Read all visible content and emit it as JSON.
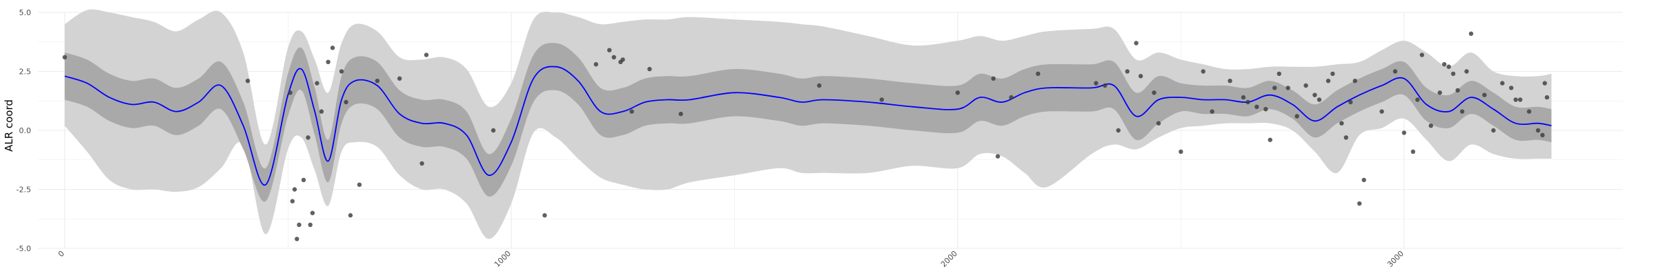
{
  "chart_data": {
    "type": "line",
    "title": "",
    "xlabel": "",
    "ylabel": "ALR coord",
    "xlim": [
      -60,
      3490
    ],
    "ylim": [
      -5.0,
      5.0
    ],
    "x_ticks": [
      0,
      1000,
      2000,
      3000
    ],
    "x_tick_labels": [
      "0",
      "1000",
      "2000",
      "3000"
    ],
    "y_ticks": [
      -5.0,
      -2.5,
      0.0,
      2.5,
      5.0
    ],
    "y_tick_labels": [
      "-5.0",
      "-2.5",
      "0.0",
      "2.5",
      "5.0"
    ],
    "grid": true,
    "legend": "none",
    "colors": {
      "mean_line": "#0000ff",
      "inner_band": "#a9a9a9",
      "outer_band": "#d3d3d3",
      "points": "#3a3a3a",
      "grid": "#ebebeb"
    },
    "series": [
      {
        "kind": "mean",
        "x": [
          0,
          50,
          100,
          150,
          200,
          250,
          300,
          350,
          400,
          450,
          500,
          530,
          560,
          590,
          620,
          650,
          700,
          750,
          800,
          850,
          900,
          950,
          1000,
          1050,
          1100,
          1150,
          1200,
          1250,
          1300,
          1350,
          1400,
          1500,
          1600,
          1650,
          1700,
          1800,
          1900,
          2000,
          2050,
          2100,
          2150,
          2200,
          2300,
          2350,
          2400,
          2450,
          2500,
          2550,
          2600,
          2650,
          2700,
          2750,
          2800,
          2850,
          2900,
          2950,
          3000,
          3050,
          3100,
          3150,
          3200,
          3250,
          3300,
          3330
        ],
        "y": [
          2.3,
          2.0,
          1.4,
          1.1,
          1.2,
          0.8,
          1.2,
          1.9,
          0.2,
          -2.3,
          1.5,
          2.6,
          0.8,
          -1.3,
          1.3,
          2.1,
          1.9,
          0.7,
          0.3,
          0.3,
          -0.2,
          -1.9,
          -0.5,
          2.2,
          2.7,
          2.1,
          0.8,
          0.8,
          1.2,
          1.3,
          1.3,
          1.6,
          1.4,
          1.2,
          1.3,
          1.2,
          1.0,
          0.9,
          1.4,
          1.2,
          1.6,
          1.8,
          1.8,
          1.9,
          0.6,
          1.3,
          1.4,
          1.3,
          1.3,
          1.2,
          1.5,
          1.1,
          0.4,
          1.0,
          1.5,
          1.9,
          2.2,
          1.1,
          0.8,
          1.4,
          0.9,
          0.3,
          0.3,
          0.2
        ]
      },
      {
        "kind": "inner_band",
        "x": [
          0,
          50,
          100,
          150,
          200,
          250,
          300,
          350,
          400,
          450,
          500,
          530,
          560,
          590,
          620,
          650,
          700,
          750,
          800,
          850,
          900,
          950,
          1000,
          1050,
          1100,
          1150,
          1200,
          1250,
          1300,
          1350,
          1400,
          1500,
          1600,
          1650,
          1700,
          1800,
          1900,
          2000,
          2050,
          2100,
          2150,
          2200,
          2300,
          2350,
          2400,
          2450,
          2500,
          2550,
          2600,
          2650,
          2700,
          2750,
          2800,
          2850,
          2900,
          2950,
          3000,
          3050,
          3100,
          3150,
          3200,
          3250,
          3300,
          3330
        ],
        "lower": [
          1.3,
          1.0,
          0.4,
          0.1,
          0.2,
          -0.2,
          0.2,
          0.9,
          -0.8,
          -3.0,
          0.6,
          1.7,
          -0.2,
          -2.2,
          0.3,
          1.1,
          0.9,
          -0.3,
          -0.7,
          -0.7,
          -1.2,
          -2.8,
          -1.5,
          1.2,
          1.7,
          1.1,
          -0.2,
          -0.2,
          0.2,
          0.3,
          0.3,
          0.6,
          0.4,
          0.2,
          0.3,
          0.2,
          0.0,
          -0.1,
          0.4,
          0.2,
          0.6,
          0.8,
          0.8,
          0.9,
          -0.4,
          0.3,
          0.8,
          0.7,
          0.7,
          0.6,
          0.9,
          0.5,
          -0.3,
          0.3,
          0.8,
          1.2,
          1.5,
          0.4,
          0.1,
          0.7,
          0.2,
          -0.4,
          -0.4,
          -0.5
        ],
        "upper": [
          3.3,
          3.0,
          2.4,
          2.1,
          2.2,
          1.8,
          2.2,
          2.9,
          1.2,
          -1.6,
          2.4,
          3.5,
          1.8,
          -0.4,
          2.3,
          3.1,
          2.9,
          1.7,
          1.3,
          1.3,
          0.8,
          -1.0,
          0.5,
          3.2,
          3.7,
          3.1,
          1.8,
          1.8,
          2.2,
          2.3,
          2.3,
          2.6,
          2.4,
          2.2,
          2.3,
          2.2,
          2.0,
          1.9,
          2.4,
          2.2,
          2.6,
          2.8,
          2.8,
          2.9,
          1.6,
          2.3,
          2.0,
          1.9,
          1.9,
          1.8,
          2.1,
          1.7,
          1.1,
          1.7,
          2.2,
          2.6,
          2.9,
          1.8,
          1.5,
          2.1,
          1.6,
          1.0,
          1.0,
          0.9
        ]
      },
      {
        "kind": "outer_band",
        "x": [
          0,
          50,
          100,
          150,
          200,
          250,
          300,
          350,
          400,
          450,
          500,
          530,
          560,
          590,
          620,
          650,
          700,
          750,
          800,
          850,
          900,
          950,
          1000,
          1050,
          1100,
          1150,
          1200,
          1250,
          1300,
          1350,
          1400,
          1500,
          1600,
          1650,
          1700,
          1800,
          1900,
          2000,
          2050,
          2100,
          2150,
          2200,
          2300,
          2350,
          2400,
          2450,
          2500,
          2550,
          2600,
          2650,
          2700,
          2750,
          2800,
          2850,
          2900,
          2950,
          3000,
          3050,
          3100,
          3150,
          3200,
          3250,
          3300,
          3330
        ],
        "lower": [
          0.2,
          -0.9,
          -2.1,
          -2.5,
          -2.5,
          -2.6,
          -2.4,
          -1.6,
          -0.6,
          -4.4,
          -0.8,
          -0.3,
          -1.7,
          -3.2,
          -0.9,
          -0.5,
          -0.7,
          -1.9,
          -2.5,
          -2.5,
          -3.1,
          -4.6,
          -3.1,
          -0.1,
          -0.3,
          -1.2,
          -2.0,
          -2.3,
          -2.5,
          -2.5,
          -2.2,
          -1.9,
          -1.6,
          -1.8,
          -1.8,
          -1.8,
          -1.5,
          -1.6,
          -1.0,
          -1.1,
          -1.8,
          -2.4,
          -1.0,
          -0.6,
          -0.8,
          -0.3,
          0.1,
          0.2,
          0.3,
          0.3,
          0.3,
          0.0,
          -0.9,
          -1.8,
          -0.2,
          0.1,
          0.5,
          -0.4,
          -1.3,
          -0.6,
          -1.0,
          -1.2,
          -1.2,
          -1.2
        ],
        "upper": [
          4.5,
          5.1,
          5.0,
          4.8,
          4.6,
          4.2,
          4.7,
          5.0,
          3.3,
          -0.6,
          3.5,
          4.2,
          3.0,
          1.6,
          3.7,
          4.5,
          4.2,
          3.1,
          3.0,
          3.1,
          2.6,
          1.0,
          2.0,
          4.7,
          5.0,
          4.8,
          4.5,
          4.6,
          4.7,
          4.7,
          4.8,
          4.7,
          4.6,
          4.5,
          4.4,
          4.0,
          3.6,
          3.8,
          4.0,
          3.8,
          4.0,
          4.2,
          4.3,
          4.3,
          3.0,
          3.3,
          3.0,
          2.8,
          2.6,
          2.6,
          2.7,
          2.7,
          2.7,
          2.8,
          2.9,
          3.4,
          3.8,
          3.3,
          2.7,
          3.3,
          2.5,
          2.3,
          2.3,
          2.4
        ]
      },
      {
        "kind": "points",
        "x": [
          0,
          410,
          505,
          510,
          515,
          520,
          525,
          535,
          545,
          550,
          555,
          565,
          575,
          590,
          600,
          620,
          630,
          640,
          660,
          700,
          750,
          800,
          810,
          960,
          1075,
          1190,
          1220,
          1230,
          1245,
          1250,
          1270,
          1310,
          1380,
          1690,
          1830,
          2000,
          2080,
          2090,
          2120,
          2180,
          2310,
          2330,
          2360,
          2380,
          2400,
          2410,
          2440,
          2450,
          2500,
          2550,
          2570,
          2610,
          2640,
          2650,
          2670,
          2690,
          2700,
          2710,
          2720,
          2740,
          2760,
          2780,
          2800,
          2810,
          2830,
          2840,
          2860,
          2870,
          2880,
          2890,
          2900,
          2910,
          2950,
          2980,
          3000,
          3020,
          3030,
          3040,
          3060,
          3080,
          3090,
          3100,
          3110,
          3120,
          3130,
          3140,
          3150,
          3180,
          3200,
          3220,
          3240,
          3250,
          3260,
          3280,
          3300,
          3310,
          3315,
          3320
        ],
        "y": [
          3.1,
          2.1,
          1.6,
          -3.0,
          -2.5,
          -4.6,
          -4.0,
          -2.1,
          -0.3,
          -4.0,
          -3.5,
          2.0,
          0.8,
          2.9,
          3.5,
          2.5,
          1.2,
          -3.6,
          -2.3,
          2.1,
          2.2,
          -1.4,
          3.2,
          0.0,
          -3.6,
          2.8,
          3.4,
          3.1,
          2.9,
          3.0,
          0.8,
          2.6,
          0.7,
          1.9,
          1.3,
          1.6,
          2.2,
          -1.1,
          1.4,
          2.4,
          2.0,
          1.9,
          0.0,
          2.5,
          3.7,
          2.3,
          1.6,
          0.3,
          -0.9,
          2.5,
          0.8,
          2.1,
          1.4,
          1.2,
          1.0,
          0.9,
          -0.4,
          1.8,
          2.4,
          1.8,
          0.6,
          1.9,
          1.5,
          1.3,
          2.1,
          2.4,
          0.3,
          -0.3,
          1.2,
          2.1,
          -3.1,
          -2.1,
          0.8,
          2.5,
          -0.1,
          -0.9,
          1.3,
          3.2,
          0.2,
          1.6,
          2.8,
          2.7,
          2.4,
          1.7,
          0.8,
          2.5,
          4.1,
          1.5,
          0.0,
          2.0,
          1.8,
          1.3,
          1.3,
          0.8,
          0.0,
          -0.2,
          2.0,
          1.4
        ]
      }
    ]
  }
}
